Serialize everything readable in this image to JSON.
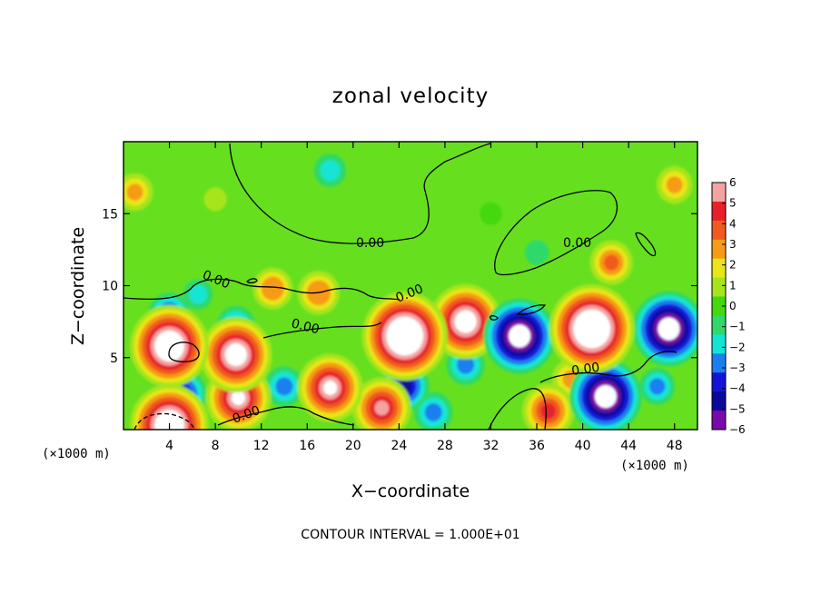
{
  "chart_data": {
    "type": "heatmap",
    "title": "zonal velocity",
    "xlabel": "X−coordinate",
    "ylabel": "Z−coordinate",
    "x_unit_left": "(×1000 m)",
    "x_unit_right": "(×1000 m)",
    "xlim": [
      0,
      50
    ],
    "ylim": [
      0,
      20
    ],
    "x_ticks": [
      4,
      8,
      12,
      16,
      20,
      24,
      28,
      32,
      36,
      40,
      44,
      48
    ],
    "y_ticks": [
      5,
      10,
      15
    ],
    "colorbar": {
      "ticks": [
        6,
        5,
        4,
        3,
        2,
        1,
        0,
        -1,
        -2,
        -3,
        -4,
        -5,
        -6
      ],
      "range": [
        -6,
        6
      ],
      "colors": [
        "#f4a3a3",
        "#e7202a",
        "#f05a1e",
        "#f79a18",
        "#e8e616",
        "#a6e41e",
        "#44d80e",
        "#2fd96a",
        "#12e5d6",
        "#1c7ff0",
        "#1414d8",
        "#0a0a9a",
        "#7a0aa8"
      ]
    },
    "contour_label": "0.00",
    "footnote": "CONTOUR INTERVAL = 1.000E+01",
    "field_features": [
      {
        "x": 18,
        "z": 18,
        "value": -2.0
      },
      {
        "x": 1,
        "z": 16.5,
        "value": 2.6
      },
      {
        "x": 48,
        "z": 17,
        "value": 2.6
      },
      {
        "x": 8,
        "z": 16,
        "value": 0.6
      },
      {
        "x": 32,
        "z": 15,
        "value": 0.5
      },
      {
        "x": 36,
        "z": 12.3,
        "value": -0.8
      },
      {
        "x": 42.5,
        "z": 11.6,
        "value": 3.6
      },
      {
        "x": 13,
        "z": 9.8,
        "value": 3.2
      },
      {
        "x": 17,
        "z": 9.5,
        "value": 3.5
      },
      {
        "x": 6.5,
        "z": 9.4,
        "value": -1.6
      },
      {
        "x": 4,
        "z": 5.8,
        "value": 9
      },
      {
        "x": 4,
        "z": 8.0,
        "value": -3.5
      },
      {
        "x": 9.8,
        "z": 5.2,
        "value": 8
      },
      {
        "x": 9.8,
        "z": 7.2,
        "value": -3.0
      },
      {
        "x": 24.5,
        "z": 6.5,
        "value": 10
      },
      {
        "x": 24.5,
        "z": 3.0,
        "value": -4.5
      },
      {
        "x": 29.8,
        "z": 7.5,
        "value": 8
      },
      {
        "x": 29.8,
        "z": 4.5,
        "value": -3.0
      },
      {
        "x": 34.5,
        "z": 6.5,
        "value": -8
      },
      {
        "x": 40.8,
        "z": 7.0,
        "value": 10
      },
      {
        "x": 47.5,
        "z": 7.0,
        "value": -8
      },
      {
        "x": 42,
        "z": 2.3,
        "value": -8
      },
      {
        "x": 39,
        "z": 3.5,
        "value": 3.0
      },
      {
        "x": 46.5,
        "z": 3.0,
        "value": -2.5
      },
      {
        "x": 10,
        "z": 2.2,
        "value": 7
      },
      {
        "x": 18,
        "z": 2.9,
        "value": 7
      },
      {
        "x": 14,
        "z": 3.0,
        "value": -3.0
      },
      {
        "x": 22.5,
        "z": 1.5,
        "value": 6
      },
      {
        "x": 27,
        "z": 1.2,
        "value": -3.0
      },
      {
        "x": 37,
        "z": 1.3,
        "value": 5
      },
      {
        "x": 4,
        "z": 0.3,
        "value": 9
      },
      {
        "x": 5,
        "z": 2.4,
        "value": -5
      }
    ]
  }
}
